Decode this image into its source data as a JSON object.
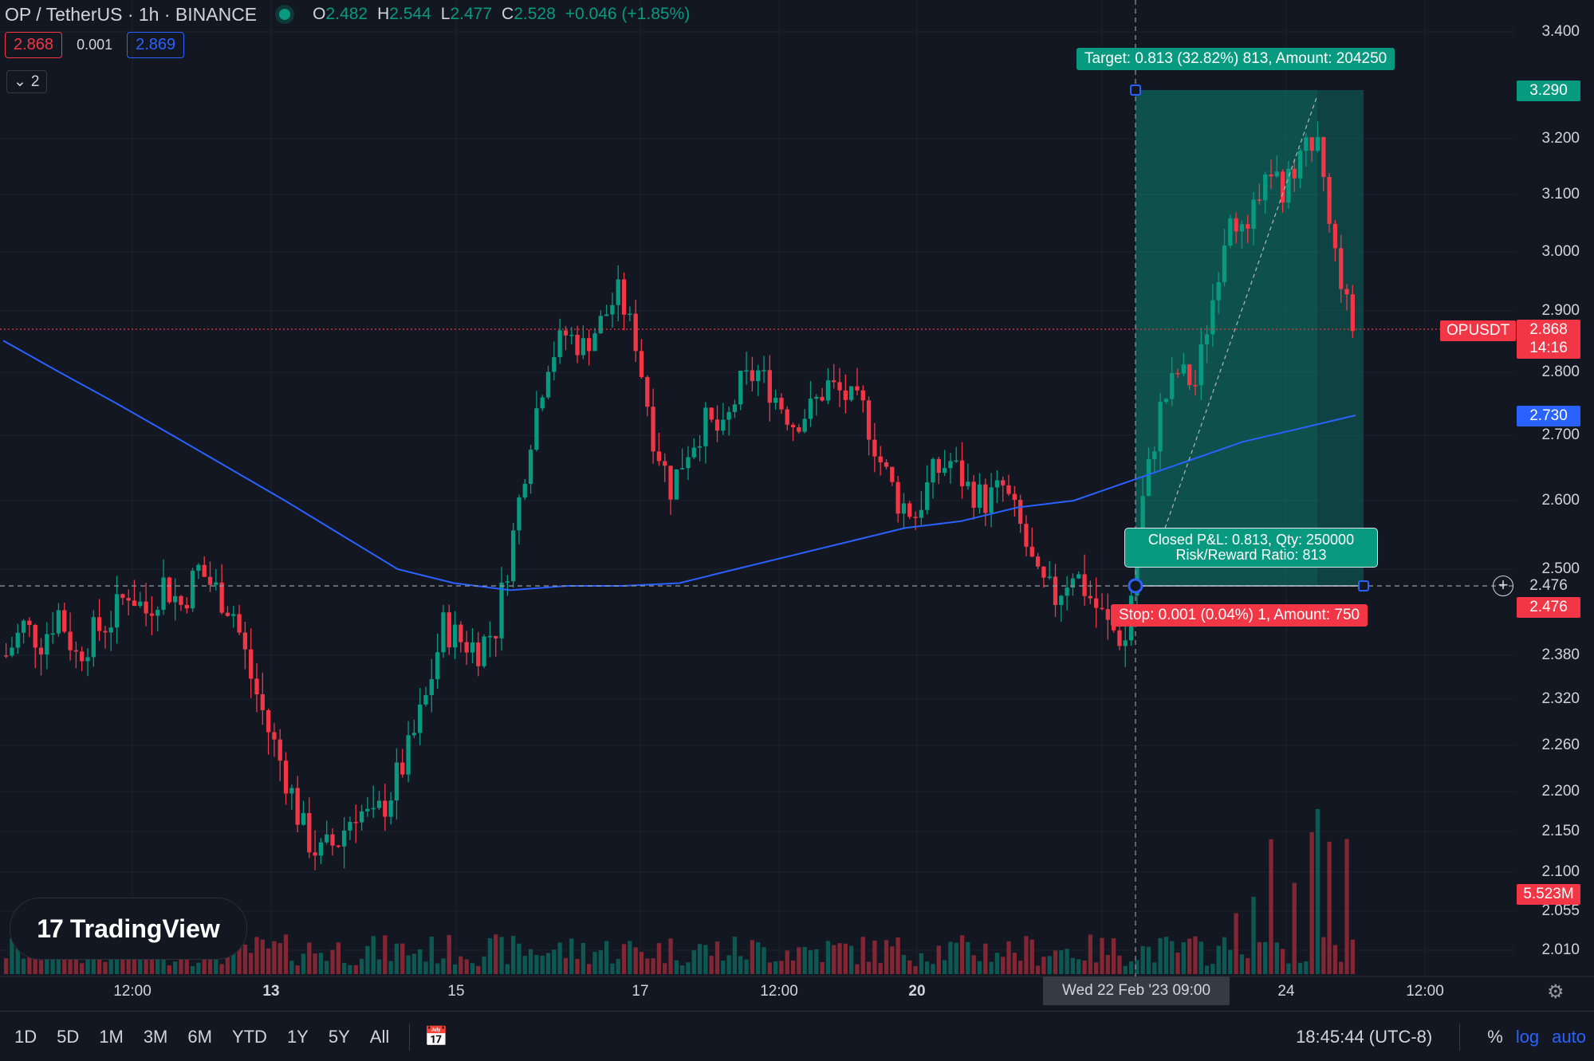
{
  "header": {
    "symbol_title": "OP / TetherUS · 1h · BINANCE",
    "ohlc": [
      {
        "k": "O",
        "v": "2.482"
      },
      {
        "k": "H",
        "v": "2.544"
      },
      {
        "k": "L",
        "v": "2.477"
      },
      {
        "k": "C",
        "v": "2.528"
      }
    ],
    "change": "+0.046 (+1.85%)"
  },
  "quote": {
    "sell": "2.868",
    "spread": "0.001",
    "buy": "2.869"
  },
  "collapse": {
    "count": "2"
  },
  "position": {
    "target_label": "Target: 0.813 (32.82%) 813, Amount: 204250",
    "stop_label": "Stop: 0.001 (0.04%) 1, Amount: 750",
    "pnl_line1": "Closed P&L: 0.813, Qty: 250000",
    "pnl_line2": "Risk/Reward Ratio: 813",
    "entry": 2.476,
    "target": 3.29
  },
  "price_tags": {
    "target": "3.290",
    "current": "2.868",
    "countdown": "14:16",
    "ma": "2.730",
    "cross": "2.476",
    "entry": "2.476",
    "volume": "5.523M",
    "symbol": "OPUSDT"
  },
  "x_axis": {
    "ticks": [
      {
        "label": "12:00",
        "bold": false
      },
      {
        "label": "13",
        "bold": true
      },
      {
        "label": "15",
        "bold": false
      },
      {
        "label": "17",
        "bold": false
      },
      {
        "label": "12:00",
        "bold": false
      },
      {
        "label": "20",
        "bold": true
      },
      {
        "label": "24",
        "bold": false
      },
      {
        "label": "12:00",
        "bold": false
      }
    ],
    "crosshair_label": "Wed 22 Feb '23   09:00"
  },
  "bottom_bar": {
    "ranges": [
      "1D",
      "5D",
      "1M",
      "3M",
      "6M",
      "YTD",
      "1Y",
      "5Y",
      "All"
    ],
    "clock": "18:45:44 (UTC-8)",
    "percent": "%",
    "log": "log",
    "auto": "auto"
  },
  "logo": {
    "text": "TradingView",
    "mark": "17"
  },
  "colors": {
    "up": "#089981",
    "down": "#f23645",
    "ma": "#2962ff",
    "bg": "#131722"
  },
  "icons": {
    "settings": "gear-icon",
    "calendar": "calendar-range-icon",
    "add": "plus-circle-icon"
  },
  "chart_data": {
    "type": "candlestick",
    "y_ticks": [
      "3.400",
      "3.200",
      "3.100",
      "3.000",
      "2.900",
      "2.800",
      "2.700",
      "2.600",
      "2.500",
      "2.380",
      "2.320",
      "2.260",
      "2.200",
      "2.150",
      "2.100",
      "2.055",
      "2.010"
    ],
    "price_range": [
      2.01,
      3.42
    ],
    "close_path": [
      2.38,
      2.42,
      2.4,
      2.44,
      2.38,
      2.41,
      2.43,
      2.47,
      2.44,
      2.48,
      2.45,
      2.5,
      2.47,
      2.44,
      2.35,
      2.28,
      2.22,
      2.15,
      2.12,
      2.14,
      2.18,
      2.16,
      2.2,
      2.25,
      2.32,
      2.42,
      2.4,
      2.39,
      2.42,
      2.55,
      2.7,
      2.82,
      2.86,
      2.84,
      2.88,
      2.93,
      2.85,
      2.7,
      2.62,
      2.68,
      2.72,
      2.7,
      2.78,
      2.8,
      2.76,
      2.72,
      2.74,
      2.78,
      2.76,
      2.74,
      2.66,
      2.6,
      2.58,
      2.64,
      2.66,
      2.62,
      2.6,
      2.62,
      2.56,
      2.48,
      2.46,
      2.5,
      2.46,
      2.42,
      2.4,
      2.6,
      2.74,
      2.8,
      2.78,
      2.92,
      3.08,
      3.02,
      3.16,
      3.1,
      3.18,
      3.2,
      3.0,
      2.87
    ],
    "ma_path": [
      2.85,
      2.8,
      2.75,
      2.7,
      2.65,
      2.6,
      2.55,
      2.5,
      2.48,
      2.47,
      2.476,
      2.476,
      2.48,
      2.5,
      2.52,
      2.54,
      2.56,
      2.57,
      2.59,
      2.6,
      2.63,
      2.66,
      2.69,
      2.71,
      2.73
    ]
  }
}
